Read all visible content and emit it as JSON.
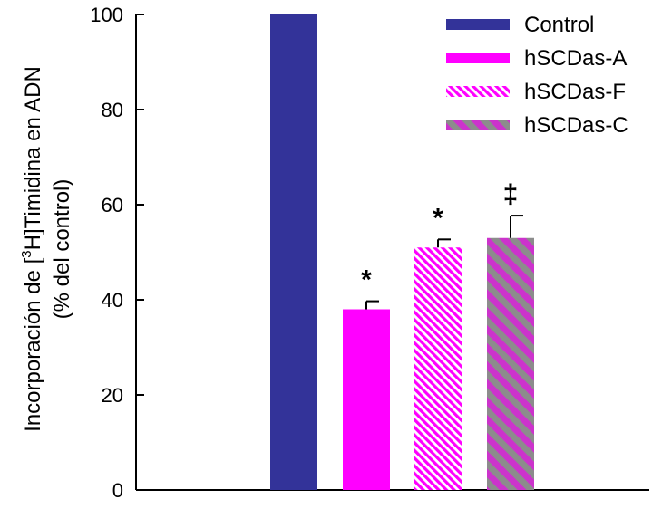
{
  "chart_data": {
    "type": "bar",
    "categories": [
      "Control",
      "hSCDas-A",
      "hSCDas-F",
      "hSCDas-C"
    ],
    "values": [
      100,
      38,
      51,
      53
    ],
    "errors": [
      0,
      1.7,
      1.7,
      4.7
    ],
    "significance": [
      "",
      "*",
      "*",
      "‡"
    ],
    "ylabel_line1_pre": "Incorporación de [",
    "ylabel_sup": "3",
    "ylabel_line1_post": "H]Timidina en ADN",
    "ylabel_line2": "(% del control)",
    "ylim": [
      0,
      100
    ],
    "yticks": [
      "0",
      "20",
      "40",
      "60",
      "80",
      "100"
    ],
    "grid": false,
    "legend_position": "top-right",
    "series": [
      {
        "name": "Control",
        "color": "#333399",
        "pattern": "solid"
      },
      {
        "name": "hSCDas-A",
        "color": "#ff00ff",
        "pattern": "solid"
      },
      {
        "name": "hSCDas-F",
        "color": "#ff00ff",
        "pattern": "fine-diagonal-hatch"
      },
      {
        "name": "hSCDas-C",
        "color": "#cc33cc",
        "pattern": "gray-diagonal-stripes"
      }
    ]
  }
}
